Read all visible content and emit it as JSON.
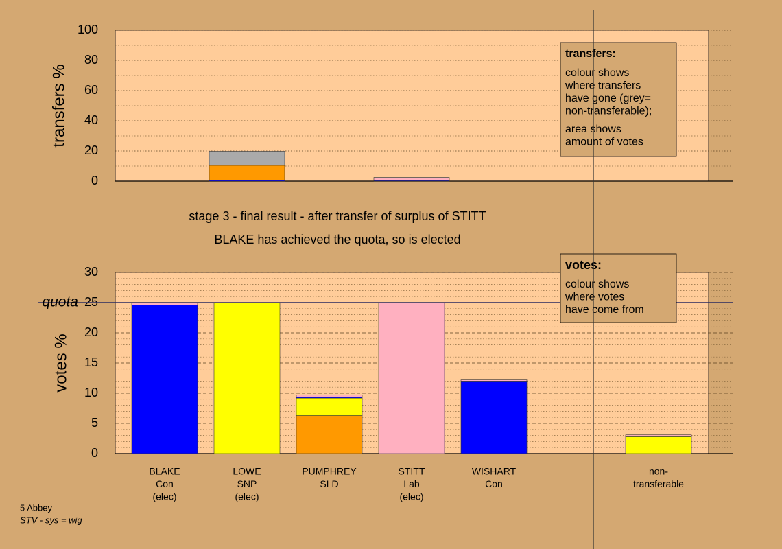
{
  "chart_data": [
    {
      "type": "bar",
      "stacked": true,
      "y_label": "transfers %",
      "ylim": [
        0,
        100
      ],
      "yticks": [
        0,
        20,
        40,
        60,
        80,
        100
      ],
      "minor_yticks": [
        10,
        30,
        50,
        70,
        90
      ],
      "categories": [
        null,
        null,
        null,
        null,
        null,
        null,
        null
      ],
      "series": [
        {
          "color": "#0000ff",
          "values": [
            null,
            0.7,
            null,
            0.5,
            null,
            null,
            null
          ]
        },
        {
          "color": "#ff9900",
          "values": [
            null,
            9.8,
            null,
            null,
            null,
            null,
            null
          ]
        },
        {
          "color": "#ffb0c0",
          "values": [
            null,
            null,
            null,
            1.5,
            null,
            null,
            null
          ]
        },
        {
          "color": "#aaaaaa",
          "values": [
            null,
            9.3,
            null,
            0.5,
            null,
            null,
            null
          ]
        }
      ],
      "box": {
        "title": "transfers:",
        "paragraphs": [
          [
            "colour shows",
            "where transfers",
            "have gone (grey=",
            "non-transferable);"
          ],
          [
            "area shows",
            "amount of votes"
          ]
        ]
      }
    },
    {
      "type": "bar",
      "stacked": true,
      "y_label": "votes %",
      "ylim": [
        0,
        30
      ],
      "yticks": [
        0,
        5,
        10,
        15,
        20,
        25,
        30
      ],
      "minor_yticks": [
        1,
        2,
        3,
        4,
        6,
        7,
        8,
        9,
        11,
        12,
        13,
        14,
        16,
        17,
        18,
        19,
        21,
        22,
        23,
        24,
        26,
        27,
        28,
        29
      ],
      "quota": 25,
      "quota_label": "quota",
      "categories": [
        [
          "BLAKE",
          "Con",
          "(elec)"
        ],
        [
          "LOWE",
          "SNP",
          "(elec)"
        ],
        [
          "PUMPHREY",
          "SLD"
        ],
        [
          "STITT",
          "Lab",
          "(elec)"
        ],
        [
          "WISHART",
          "Con"
        ],
        null,
        [
          "non-",
          "transferable"
        ]
      ],
      "series": [
        {
          "color": "#ff9900",
          "values": [
            null,
            null,
            6.3,
            null,
            null,
            null,
            null
          ]
        },
        {
          "color": "#ffff00",
          "values": [
            null,
            25,
            2.9,
            null,
            null,
            null,
            2.8
          ]
        },
        {
          "color": "#0000ff",
          "values": [
            24.6,
            null,
            0.2,
            null,
            12.0,
            null,
            0.1
          ]
        },
        {
          "color": "#ffb0c0",
          "values": [
            0.4,
            null,
            0.3,
            25,
            0.2,
            null,
            0.2
          ]
        }
      ],
      "box": {
        "title": "votes:",
        "paragraphs": [
          [
            "colour shows",
            "where votes",
            "have come from"
          ]
        ]
      }
    }
  ],
  "stage_text": [
    "stage 3 - final result - after transfer of surplus of STITT",
    "BLAKE has achieved the quota, so is elected"
  ],
  "footer": [
    "5 Abbey",
    "STV - sys = wig"
  ]
}
